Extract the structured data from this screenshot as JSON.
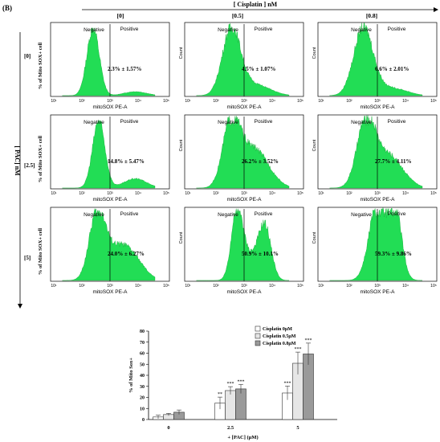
{
  "panel_label": "(B)",
  "top_axis_label": "[ Cisplatin ] nM",
  "col_labels": [
    "[0]",
    "[0.5]",
    "[0.8]"
  ],
  "row_labels": [
    "[0]",
    "[2.5]",
    "[5]"
  ],
  "side_axis_label": "[ PAC] nM",
  "row_ylabel": "% of Mito SOX+ cell",
  "facs_xlabel": "mitoSOX PE-A",
  "facs_ylabel": "Count",
  "negative_label": "Negative",
  "positive_label": "Positive",
  "facs_xticks": [
    "10¹",
    "10²",
    "10³",
    "10⁴",
    "10⁵"
  ],
  "histograms": [
    {
      "row": 0,
      "col": 0,
      "peak_log": 2.4,
      "width": 0.22,
      "shoulder": 0,
      "tail": 0.06,
      "label": "2.3% ± 1.57%"
    },
    {
      "row": 0,
      "col": 1,
      "peak_log": 2.55,
      "width": 0.32,
      "shoulder": 0.15,
      "tail": 0.04,
      "label": "4.5% ± 1.07%"
    },
    {
      "row": 0,
      "col": 2,
      "peak_log": 2.5,
      "width": 0.34,
      "shoulder": 0.1,
      "tail": 0.05,
      "label": "6.6% ± 2.01%"
    },
    {
      "row": 1,
      "col": 0,
      "peak_log": 2.6,
      "width": 0.22,
      "shoulder": 0,
      "tail": 0.14,
      "label": "14.8% ± 5.47%"
    },
    {
      "row": 1,
      "col": 1,
      "peak_log": 2.55,
      "width": 0.3,
      "shoulder": 0.55,
      "tail": 0.1,
      "label": "26.2% ± 3.52%"
    },
    {
      "row": 1,
      "col": 2,
      "peak_log": 2.6,
      "width": 0.32,
      "shoulder": 0.45,
      "tail": 0.08,
      "label": "27.7% ± 4.11%"
    },
    {
      "row": 2,
      "col": 0,
      "peak_log": 2.55,
      "width": 0.28,
      "shoulder": 0.45,
      "tail": 0.2,
      "label": "24.0% ± 6.27%"
    },
    {
      "row": 2,
      "col": 1,
      "peak_log": 2.75,
      "width": 0.2,
      "shoulder": 0,
      "second_peak_log": 3.75,
      "second_height": 0.72,
      "label": "50.9% ± 10.1%"
    },
    {
      "row": 2,
      "col": 2,
      "peak_log": 3.0,
      "width": 0.3,
      "shoulder": 0,
      "second_peak_log": 3.65,
      "second_height": 0.85,
      "label": "59.3% ± 9.86%"
    }
  ],
  "chart_data": {
    "type": "bar",
    "title": "",
    "xlabel": "+ [PAC] (μM)",
    "ylabel": "% of Mito Sox+",
    "categories": [
      "0",
      "2.5",
      "5"
    ],
    "ylim": [
      0,
      80
    ],
    "yticks": [
      "0",
      "10",
      "20",
      "30",
      "40",
      "50",
      "60",
      "70",
      "80"
    ],
    "legend_position": "top-right",
    "series": [
      {
        "name": "Cisplatin 0μM",
        "color": "#ffffff",
        "values": [
          2.3,
          14.8,
          24.0
        ],
        "errors": [
          1.57,
          5.47,
          6.27
        ],
        "sig": [
          "",
          "**",
          "***"
        ]
      },
      {
        "name": "Cisplatin 0.5μM",
        "color": "#e6e6e6",
        "values": [
          4.5,
          26.2,
          50.9
        ],
        "errors": [
          1.07,
          3.52,
          10.1
        ],
        "sig": [
          "",
          "***",
          "***"
        ]
      },
      {
        "name": "Cisplatin 0.8μM",
        "color": "#9a9a9a",
        "values": [
          6.6,
          27.7,
          59.3
        ],
        "errors": [
          2.01,
          4.11,
          9.86
        ],
        "sig": [
          "",
          "***",
          "***"
        ]
      }
    ]
  }
}
